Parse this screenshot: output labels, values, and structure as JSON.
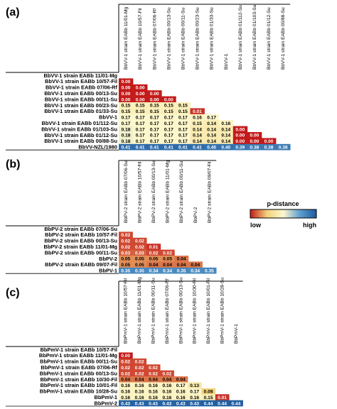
{
  "chart_data": [
    {
      "type": "heatmap",
      "panel": "(a)",
      "rows": [
        "BbVV-1 strain EABb 11/01-Mg",
        "BbVV-1 strain EABb 10/57-Fil",
        "BbVV-1 strain EABb 07/06-Rf",
        "BbVV-1 strain EABb 00/13-Su",
        "BbVV-1 strain EABb 00/11-Su",
        "BbVV-1 strain EABb 00/23-Su",
        "BbVV-1 strain EABb 01/33-Su",
        "BbVV-1",
        "BbVV-1 strain EABb 01/112-Su",
        "BbVV-1 strain EABb 01/103-Su",
        "BbVV-1 strain EABb 01/12-Su",
        "BbVV-1 strain EABb 00/88-Su",
        "BbVV-NZL/1980"
      ],
      "columns": [
        "BbVV-1 strain EABb 11/01-Mg",
        "BbVV-1 strain EABb 10/57-Fil",
        "BbVV-1 strain EABb 07/06-Rf",
        "BbVV-1 strain EABb 00/13-Su",
        "BbVV-1 strain EABb 00/11-Su",
        "BbVV-1 strain EABb 00/23-Su",
        "BbVV-1 strain EABb 01/33-Su",
        "BbVV-1",
        "BbVV-1 strain EABb 01/112-Su",
        "BbVV-1 strain EABb 01/103-Su",
        "BbVV-1 strain EABb 01/12-Su",
        "BbVV-1 strain EABb 00/88-Su"
      ],
      "values": [
        [],
        [
          "0.00"
        ],
        [
          "0.00",
          "0.00"
        ],
        [
          "0.00",
          "0.00",
          "0.00"
        ],
        [
          "0.00",
          "0.00",
          "0.00",
          "0.00"
        ],
        [
          "0.15",
          "0.15",
          "0.15",
          "0.15",
          "0.15"
        ],
        [
          "0.15",
          "0.15",
          "0.15",
          "0.15",
          "0.15",
          "0.01"
        ],
        [
          "0.17",
          "0.17",
          "0.17",
          "0.17",
          "0.17",
          "0.16",
          "0.17"
        ],
        [
          "0.17",
          "0.17",
          "0.17",
          "0.17",
          "0.17",
          "0.15",
          "0.14",
          "0.16"
        ],
        [
          "0.18",
          "0.17",
          "0.17",
          "0.17",
          "0.17",
          "0.14",
          "0.14",
          "0.14",
          "0.00"
        ],
        [
          "0.18",
          "0.17",
          "0.17",
          "0.17",
          "0.17",
          "0.14",
          "0.14",
          "0.14",
          "0.00",
          "0.00"
        ],
        [
          "0.18",
          "0.17",
          "0.17",
          "0.17",
          "0.17",
          "0.14",
          "0.14",
          "0.14",
          "0.00",
          "0.00",
          "0.00"
        ],
        [
          "0.41",
          "0.41",
          "0.41",
          "0.41",
          "0.41",
          "0.41",
          "0.40",
          "0.40",
          "0.39",
          "0.38",
          "0.38",
          "0.38"
        ]
      ]
    },
    {
      "type": "heatmap",
      "panel": "(b)",
      "rows": [
        "BbPV-2 strain EABb 07/06-Su",
        "BbPV-2 strain EABb 10/57-Fil",
        "BbPV-2 strain EABb 00/13-Su",
        "BbPV-2 strain EABb 11/01-Mg",
        "BbPV-2 strain EABb 00/11-Su",
        "BbPV-2",
        "BbPV-2 strain EABb 09/07-Fil",
        "BbPV-1"
      ],
      "columns": [
        "BbPV-2 strain EABb 07/06-Su",
        "BbPV-2 strain EABb 10/57-Fil",
        "BbPV-2 strain EABb 00/13-Su",
        "BbPV-2 strain EABb 11/01-Mg",
        "BbPV-2 strain EABb 00/11-Su",
        "BbPV-2",
        "BbPV-2 strain EABb 09/07-Fil"
      ],
      "values": [
        [],
        [
          "0.02"
        ],
        [
          "0.02",
          "0.02"
        ],
        [
          "0.02",
          "0.02",
          "0.01"
        ],
        [
          "0.03",
          "0.03",
          "0.02",
          "0.02"
        ],
        [
          "0.05",
          "0.05",
          "0.05",
          "0.05",
          "0.04"
        ],
        [
          "0.05",
          "0.05",
          "0.04",
          "0.04",
          "0.04",
          "0.04"
        ],
        [
          "0.35",
          "0.35",
          "0.34",
          "0.34",
          "0.35",
          "0.34",
          "0.35"
        ]
      ]
    },
    {
      "type": "heatmap",
      "panel": "(c)",
      "rows": [
        "BbPmV-1 strain EABb 10/57-Fil",
        "BbPmV-1 strain EABb 11/01-Mg",
        "BbPmV-1 strain EABb 00/11-Su",
        "BbPmV-1 strain EABb 07/06-Rf",
        "BbPmV-1 strain EABb 00/13-Su",
        "BbPmV-1 strain EABb 10/30-Fil",
        "BbPmV-1 strain EABb 10/01-Fil",
        "BbPmV-1 strain EABb 10/28-Su",
        "BbPmV-1",
        "BbPmV-2"
      ],
      "columns": [
        "BbPmV-1 strain EABb 10/57-Fil",
        "BbPmV-1 strain EABb 11/01-Mg",
        "BbPmV-1 strain EABb 00/11-Su",
        "BbPmV-1 strain EABb 07/06-Rf",
        "BbPmV-1 strain EABb 00/13-Su",
        "BbPmV-1 strain EABb 10/30-Fil",
        "BbPmV-1 strain EABb 10/01-Fil",
        "BbPmV-1 strain EABb 10/28-Su",
        "BbPmV-1"
      ],
      "values": [
        [],
        [
          "0.00"
        ],
        [
          "0.02",
          "0.02"
        ],
        [
          "0.02",
          "0.02",
          "0.02"
        ],
        [
          "0.02",
          "0.02",
          "0.02",
          "0.02"
        ],
        [
          "0.04",
          "0.04",
          "0.04",
          "0.04",
          "0.04"
        ],
        [
          "0.16",
          "0.16",
          "0.16",
          "0.16",
          "0.17",
          "0.13"
        ],
        [
          "0.16",
          "0.16",
          "0.16",
          "0.16",
          "0.16",
          "0.17",
          "0.08"
        ],
        [
          "0.16",
          "0.16",
          "0.16",
          "0.16",
          "0.16",
          "0.16",
          "0.15",
          "0.01"
        ],
        [
          "0.43",
          "0.43",
          "0.43",
          "0.43",
          "0.43",
          "0.43",
          "0.44",
          "0.44",
          "0.44"
        ]
      ]
    }
  ],
  "legend": {
    "title": "p-distance",
    "low_label": "low",
    "high_label": "high",
    "colors": [
      "#c41a1a",
      "#f2d27a",
      "#fdf7cc",
      "#5e9fd0",
      "#1c5a9e"
    ]
  }
}
